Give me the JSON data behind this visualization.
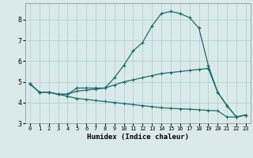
{
  "xlabel": "Humidex (Indice chaleur)",
  "bg_color": "#daeaea",
  "grid_color": "#b8d4d4",
  "line_color": "#1a6b6b",
  "xlim": [
    -0.5,
    23.5
  ],
  "ylim": [
    3.0,
    8.8
  ],
  "yticks": [
    3,
    4,
    5,
    6,
    7,
    8
  ],
  "xticks": [
    0,
    1,
    2,
    3,
    4,
    5,
    6,
    7,
    8,
    9,
    10,
    11,
    12,
    13,
    14,
    15,
    16,
    17,
    18,
    19,
    20,
    21,
    22,
    23
  ],
  "curve1_x": [
    0,
    1,
    2,
    3,
    4,
    5,
    6,
    7,
    8,
    9,
    10,
    11,
    12,
    13,
    14,
    15,
    16,
    17,
    18,
    19,
    20,
    21,
    22,
    23
  ],
  "curve1_y": [
    4.9,
    4.5,
    4.5,
    4.4,
    4.4,
    4.7,
    4.7,
    4.7,
    4.7,
    5.2,
    5.8,
    6.5,
    6.9,
    7.7,
    8.3,
    8.4,
    8.3,
    8.1,
    7.6,
    5.8,
    4.5,
    3.85,
    3.3,
    3.4
  ],
  "curve2_x": [
    0,
    1,
    2,
    3,
    4,
    5,
    6,
    7,
    8,
    9,
    10,
    11,
    12,
    13,
    14,
    15,
    16,
    17,
    18,
    19,
    20,
    21,
    22,
    23
  ],
  "curve2_y": [
    4.9,
    4.5,
    4.5,
    4.4,
    4.4,
    4.55,
    4.6,
    4.65,
    4.7,
    4.85,
    5.0,
    5.1,
    5.2,
    5.3,
    5.4,
    5.45,
    5.5,
    5.55,
    5.6,
    5.65,
    4.5,
    3.85,
    3.3,
    3.4
  ],
  "curve3_x": [
    0,
    1,
    2,
    3,
    4,
    5,
    6,
    7,
    8,
    9,
    10,
    11,
    12,
    13,
    14,
    15,
    16,
    17,
    18,
    19,
    20,
    21,
    22,
    23
  ],
  "curve3_y": [
    4.9,
    4.5,
    4.5,
    4.4,
    4.3,
    4.2,
    4.15,
    4.1,
    4.05,
    4.0,
    3.95,
    3.9,
    3.85,
    3.8,
    3.75,
    3.72,
    3.7,
    3.68,
    3.65,
    3.62,
    3.6,
    3.3,
    3.3,
    3.4
  ]
}
